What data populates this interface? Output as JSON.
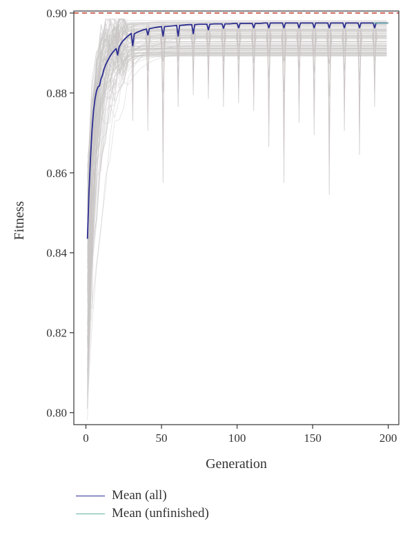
{
  "chart_data": {
    "type": "line",
    "title": "",
    "xlabel": "Generation",
    "ylabel": "Fitness",
    "xlim": [
      -8,
      207
    ],
    "ylim": [
      0.797,
      0.9005
    ],
    "xticks": [
      0,
      50,
      100,
      150,
      200
    ],
    "yticks": [
      0.8,
      0.82,
      0.84,
      0.86,
      0.88,
      0.9
    ],
    "xtick_labels": [
      "0",
      "50",
      "100",
      "150",
      "200"
    ],
    "ytick_labels": [
      "0.80",
      "0.82",
      "0.84",
      "0.86",
      "0.88",
      "0.90"
    ],
    "reference_line": {
      "y": 0.9,
      "style": "dashed",
      "color": "#c0392b"
    },
    "grid": false,
    "legend_position": "bottom-left",
    "series": [
      {
        "name": "Mean (all)",
        "color": "#2b2d8f",
        "x": [
          1,
          2,
          3,
          4,
          5,
          6,
          7,
          8,
          9,
          10,
          11,
          12,
          13,
          14,
          15,
          16,
          17,
          18,
          19,
          20,
          21,
          22,
          23,
          24,
          25,
          26,
          27,
          28,
          29,
          30,
          31,
          32,
          34,
          36,
          38,
          40,
          41,
          42,
          45,
          48,
          50,
          51,
          52,
          55,
          58,
          60,
          61,
          62,
          65,
          68,
          70,
          71,
          72,
          75,
          78,
          80,
          81,
          82,
          85,
          88,
          90,
          91,
          92,
          95,
          98,
          100,
          101,
          102,
          105,
          108,
          110,
          111,
          112,
          115,
          118,
          120,
          121,
          122,
          125,
          128,
          130,
          131,
          132,
          135,
          138,
          140,
          141,
          142,
          145,
          148,
          150,
          151,
          152,
          155,
          158,
          160,
          161,
          162,
          165,
          168,
          170,
          171,
          172,
          175,
          178,
          180,
          181,
          182,
          185,
          188,
          190,
          191,
          192,
          195,
          200
        ],
        "y": [
          0.8435,
          0.855,
          0.8635,
          0.8705,
          0.8755,
          0.8785,
          0.8805,
          0.8815,
          0.8818,
          0.8835,
          0.8845,
          0.886,
          0.887,
          0.8878,
          0.8885,
          0.8892,
          0.8898,
          0.8903,
          0.8907,
          0.8911,
          0.8895,
          0.8915,
          0.8922,
          0.8928,
          0.8932,
          0.8936,
          0.894,
          0.8943,
          0.8946,
          0.8949,
          0.8918,
          0.8948,
          0.8952,
          0.8955,
          0.8958,
          0.896,
          0.8945,
          0.8961,
          0.8963,
          0.8965,
          0.8966,
          0.8942,
          0.8966,
          0.8967,
          0.8968,
          0.8969,
          0.8942,
          0.8969,
          0.897,
          0.8971,
          0.8971,
          0.8948,
          0.8971,
          0.8972,
          0.8972,
          0.8972,
          0.8958,
          0.8972,
          0.8973,
          0.8973,
          0.8973,
          0.8962,
          0.8973,
          0.8973,
          0.8974,
          0.8974,
          0.8963,
          0.8974,
          0.8974,
          0.8974,
          0.8974,
          0.8963,
          0.8974,
          0.8974,
          0.8975,
          0.8975,
          0.8963,
          0.8975,
          0.8975,
          0.8975,
          0.8975,
          0.8963,
          0.8975,
          0.8975,
          0.8975,
          0.8975,
          0.8963,
          0.8975,
          0.8975,
          0.8975,
          0.8975,
          0.8963,
          0.8975,
          0.8975,
          0.8975,
          0.8975,
          0.8963,
          0.8975,
          0.8975,
          0.8975,
          0.8975,
          0.8963,
          0.8975,
          0.8975,
          0.8975,
          0.8975,
          0.8963,
          0.8975,
          0.8975,
          0.8975,
          0.8975,
          0.8963,
          0.8975,
          0.8975,
          0.8975
        ]
      },
      {
        "name": "Mean (unfinished)",
        "color": "#5fb0a6",
        "x": [
          190,
          192,
          195,
          200
        ],
        "y": [
          0.8975,
          0.8975,
          0.8975,
          0.8975
        ]
      }
    ],
    "background_runs": {
      "color": "#cbc6c6",
      "count": 100,
      "min_value": 0.801,
      "dip_generations": [
        21,
        31,
        41,
        51,
        61,
        71,
        81,
        91,
        101,
        111,
        121,
        131,
        141,
        151,
        161,
        171,
        181,
        191
      ],
      "dip_minimums": [
        0.8875,
        0.873,
        0.8705,
        0.8575,
        0.8765,
        0.8795,
        0.8785,
        0.8765,
        0.8775,
        0.8755,
        0.8665,
        0.8575,
        0.8725,
        0.8695,
        0.8545,
        0.8705,
        0.8645,
        0.8765
      ]
    }
  }
}
